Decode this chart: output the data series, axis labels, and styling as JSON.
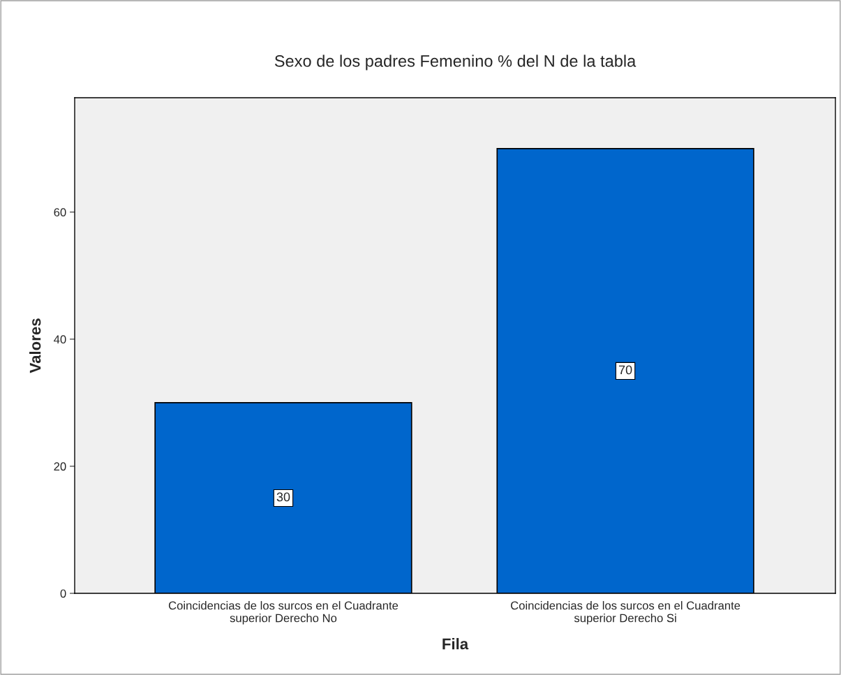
{
  "chart_data": {
    "type": "bar",
    "title": "Sexo de los padres Femenino % del N de la tabla",
    "xlabel": "Fila",
    "ylabel": "Valores",
    "categories": [
      "Coincidencias de los surcos en el Cuadrante\nsuperior Derecho No",
      "Coincidencias de los surcos en el Cuadrante\nsuperior Derecho Si"
    ],
    "values": [
      30,
      70
    ],
    "color": "#0066cc",
    "ylim": [
      0,
      78
    ],
    "yticks": [
      0,
      20,
      40,
      60
    ],
    "grid": false,
    "data_labels": true
  }
}
